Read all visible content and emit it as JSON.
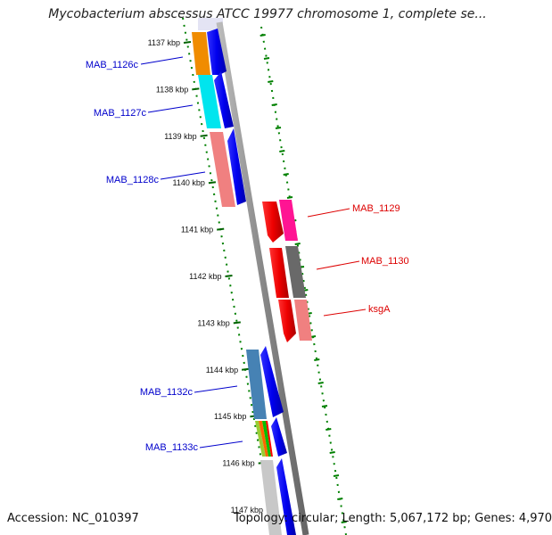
{
  "title": "Mycobacterium abscessus ATCC 19977 chromosome 1, complete se...",
  "footer": {
    "accession": "Accession: NC_010397",
    "topology": "Topology: circular; Length: 5,067,172 bp; Genes: 4,970"
  },
  "ticks": [
    "1137 kbp",
    "1138 kbp",
    "1139 kbp",
    "1140 kbp",
    "1141 kbp",
    "1142 kbp",
    "1143 kbp",
    "1144 kbp",
    "1145 kbp",
    "1146 kbp",
    "1147 kbp"
  ],
  "genes_left": [
    {
      "label": "MAB_1126c",
      "color": "#f08c00"
    },
    {
      "label": "MAB_1127c",
      "color": "#00e5ee"
    },
    {
      "label": "MAB_1128c",
      "color": "#f08080"
    },
    {
      "label": "MAB_1132c",
      "color": "#4682b4"
    },
    {
      "label": "MAB_1133c",
      "color": "#9acd32"
    }
  ],
  "genes_right": [
    {
      "label": "MAB_1129",
      "color": "#ff1493"
    },
    {
      "label": "MAB_1130",
      "color": "#696969"
    },
    {
      "label": "ksgA",
      "color": "#f08080"
    }
  ],
  "colors": {
    "strand_forward": "#ff0000",
    "strand_reverse": "#0000ff",
    "gc_track": "#008000",
    "backbone": "#808080",
    "label_left": "#0000cc",
    "label_right": "#dd0000"
  }
}
